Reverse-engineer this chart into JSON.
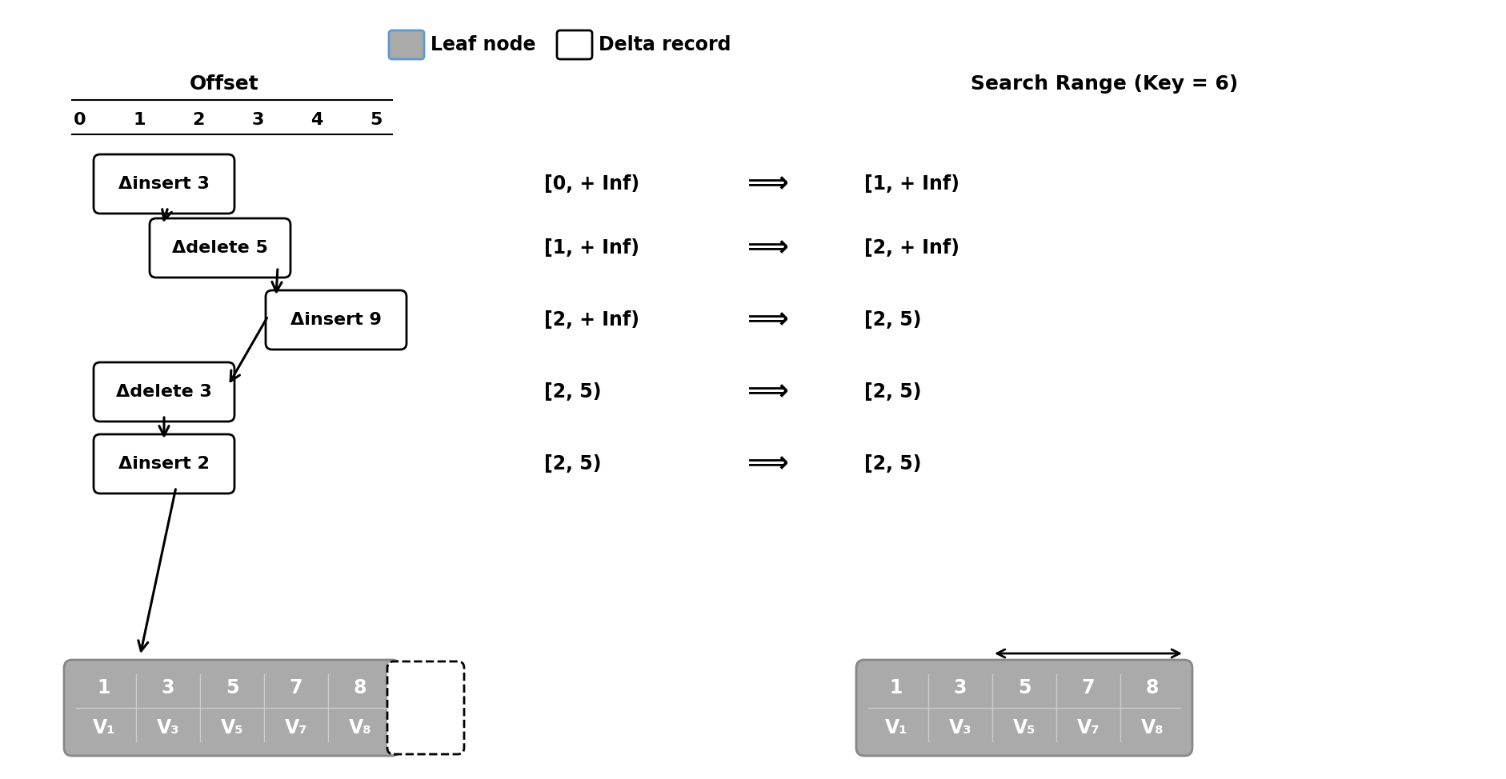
{
  "legend_leaf_label": "Leaf node",
  "legend_delta_label": "Delta record",
  "offset_label": "Offset",
  "offset_values": [
    "0",
    "1",
    "2",
    "3",
    "4",
    "5"
  ],
  "search_range_title": "Search Range (Key = 6)",
  "search_ranges": [
    {
      "left": "[0, + Inf)",
      "right": "[1, + Inf)"
    },
    {
      "left": "[1, + Inf)",
      "right": "[2, + Inf)"
    },
    {
      "left": "[2, + Inf)",
      "right": "[2, 5)"
    },
    {
      "left": "[2, 5)",
      "right": "[2, 5)"
    },
    {
      "left": "[2, 5)",
      "right": "[2, 5)"
    }
  ],
  "delta_node_labels": [
    "Δinsert 3",
    "Δdelete 5",
    "Δinsert 9",
    "Δdelete 3",
    "Δinsert 2"
  ],
  "leaf_keys": [
    "1",
    "3",
    "5",
    "7",
    "8"
  ],
  "leaf_values": [
    "V₁",
    "V₃",
    "V₅",
    "V₇",
    "V₈"
  ],
  "leaf_color": "#aaaaaa",
  "leaf_text_color": "#ffffff",
  "background_color": "#ffffff",
  "search_range_arrow": "⟹"
}
